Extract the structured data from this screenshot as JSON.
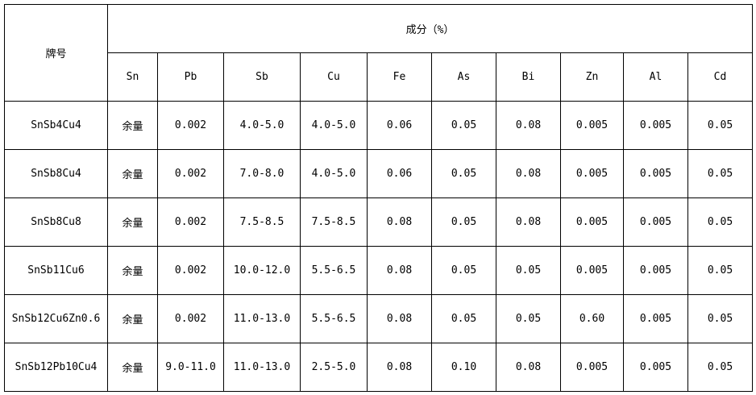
{
  "header": {
    "grade": "牌号",
    "composition": "成分（%）",
    "elements": [
      "Sn",
      "Pb",
      "Sb",
      "Cu",
      "Fe",
      "As",
      "Bi",
      "Zn",
      "Al",
      "Cd"
    ]
  },
  "table": {
    "rows": [
      [
        "SnSb4Cu4",
        "余量",
        "0.002",
        "4.0-5.0",
        "4.0-5.0",
        "0.06",
        "0.05",
        "0.08",
        "0.005",
        "0.005",
        "0.05"
      ],
      [
        "SnSb8Cu4",
        "余量",
        "0.002",
        "7.0-8.0",
        "4.0-5.0",
        "0.06",
        "0.05",
        "0.08",
        "0.005",
        "0.005",
        "0.05"
      ],
      [
        "SnSb8Cu8",
        "余量",
        "0.002",
        "7.5-8.5",
        "7.5-8.5",
        "0.08",
        "0.05",
        "0.08",
        "0.005",
        "0.005",
        "0.05"
      ],
      [
        "SnSb11Cu6",
        "余量",
        "0.002",
        "10.0-12.0",
        "5.5-6.5",
        "0.08",
        "0.05",
        "0.05",
        "0.005",
        "0.005",
        "0.05"
      ],
      [
        "SnSb12Cu6Zn0.6",
        "余量",
        "0.002",
        "11.0-13.0",
        "5.5-6.5",
        "0.08",
        "0.05",
        "0.05",
        "0.60",
        "0.005",
        "0.05"
      ],
      [
        "SnSb12Pb10Cu4",
        "余量",
        "9.0-11.0",
        "11.0-13.0",
        "2.5-5.0",
        "0.08",
        "0.10",
        "0.08",
        "0.005",
        "0.005",
        "0.05"
      ]
    ]
  }
}
